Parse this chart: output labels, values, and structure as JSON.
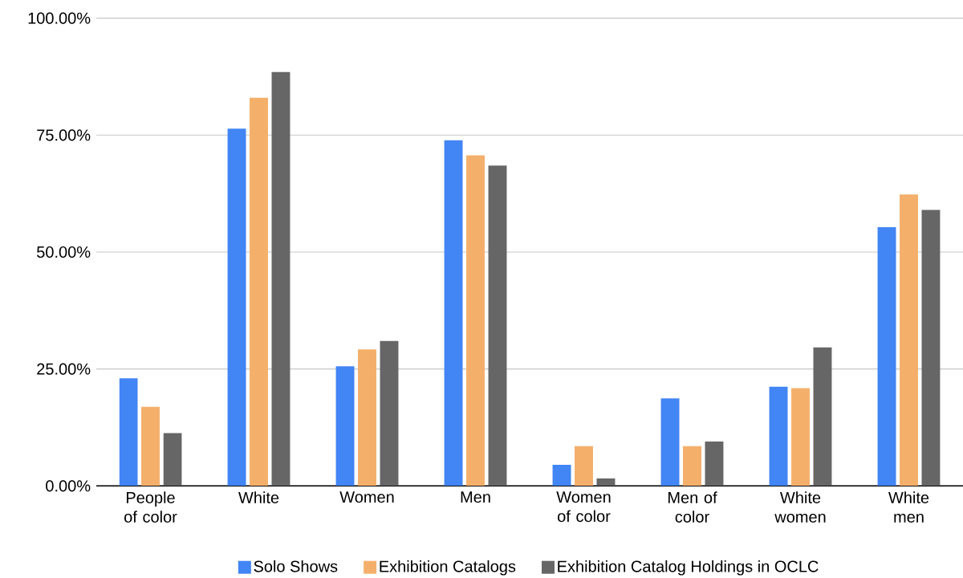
{
  "chart_data": {
    "type": "bar",
    "categories": [
      "People of color",
      "White",
      "Women",
      "Men",
      "Women of color",
      "Men of color",
      "White women",
      "White men"
    ],
    "series": [
      {
        "name": "Solo Shows",
        "color": "#4285f4",
        "values": [
          23.0,
          76.4,
          25.6,
          73.9,
          4.5,
          18.7,
          21.2,
          55.3
        ]
      },
      {
        "name": "Exhibition Catalogs",
        "color": "#f4b06b",
        "values": [
          16.9,
          83.0,
          29.2,
          70.7,
          8.5,
          8.5,
          20.9,
          62.3
        ]
      },
      {
        "name": "Exhibition Catalog Holdings in OCLC",
        "color": "#666666",
        "values": [
          11.3,
          88.5,
          31.0,
          68.5,
          1.6,
          9.5,
          29.6,
          59.0
        ]
      }
    ],
    "ylim": [
      0,
      100
    ],
    "yticks": [
      {
        "value": 0,
        "label": "0.00%"
      },
      {
        "value": 25,
        "label": "25.00%"
      },
      {
        "value": 50,
        "label": "50.00%"
      },
      {
        "value": 75,
        "label": "75.00%"
      },
      {
        "value": 100,
        "label": "100.00%"
      }
    ],
    "grid": "y",
    "legend": "bottom"
  }
}
